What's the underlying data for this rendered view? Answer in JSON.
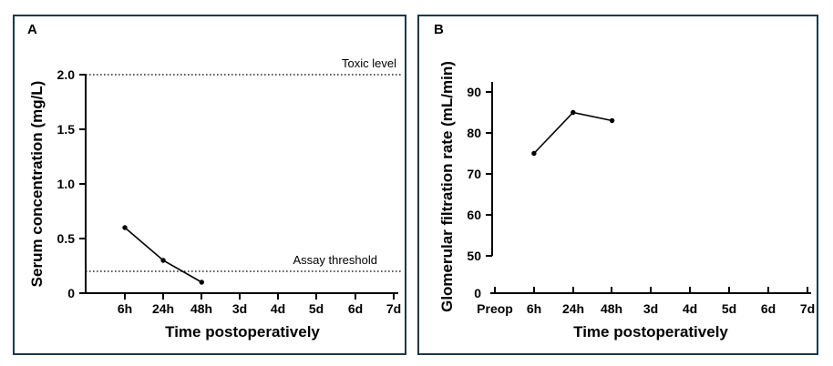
{
  "colors": {
    "axis": "#000000",
    "series": "#000000",
    "reference_line": "#000000",
    "panel_border": "#1c3847",
    "background": "#ffffff"
  },
  "chart_data": [
    {
      "type": "line",
      "panel": "A",
      "title": "",
      "ylabel": "Serum concentration (mg/L)",
      "xlabel": "Time postoperatively",
      "categories": [
        "6h",
        "24h",
        "48h",
        "3d",
        "4d",
        "5d",
        "6d",
        "7d"
      ],
      "y_tick_labels": [
        "0",
        "0.5",
        "1.0",
        "1.5",
        "2.0"
      ],
      "ylim": [
        0,
        2.0
      ],
      "grid": false,
      "legend": false,
      "series": [
        {
          "name": "Serum concentration",
          "x": [
            "6h",
            "24h",
            "48h"
          ],
          "values": [
            0.6,
            0.3,
            0.1
          ]
        }
      ],
      "reference_lines": [
        {
          "label": "Toxic level",
          "value": 2.0,
          "style": "dotted"
        },
        {
          "label": "Assay threshold",
          "value": 0.2,
          "style": "dotted"
        }
      ]
    },
    {
      "type": "line",
      "panel": "B",
      "title": "",
      "ylabel": "Glomerular filtration rate (mL/min)",
      "xlabel": "Time postoperatively",
      "categories": [
        "Preop",
        "6h",
        "24h",
        "48h",
        "3d",
        "4d",
        "5d",
        "6d",
        "7d"
      ],
      "y_tick_labels": [
        "0",
        "50",
        "60",
        "70",
        "80",
        "90"
      ],
      "ylim": [
        50,
        90
      ],
      "axis_break_between": [
        0,
        50
      ],
      "grid": false,
      "legend": false,
      "series": [
        {
          "name": "Glomerular filtration rate",
          "x": [
            "6h",
            "24h",
            "48h"
          ],
          "values": [
            75,
            85,
            83
          ]
        }
      ]
    }
  ]
}
